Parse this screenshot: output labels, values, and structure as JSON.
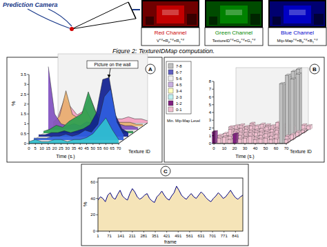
{
  "diagram": {
    "camera_label": "Prediction Camera",
    "channels": [
      {
        "name": "Red Channel",
        "color": "#cc0000",
        "formula": [
          {
            "text": "V"
          },
          {
            "sup": "x,y"
          },
          {
            "text": "=R"
          },
          {
            "sub": "P"
          },
          {
            "sup": "x,y"
          },
          {
            "text": "×R"
          },
          {
            "sub": "T"
          },
          {
            "sup": "x,y"
          }
        ]
      },
      {
        "name": "Green Channel",
        "color": "#008800",
        "formula": [
          {
            "text": "TextureID"
          },
          {
            "sup": "x,y"
          },
          {
            "text": "=G"
          },
          {
            "sub": "P"
          },
          {
            "sup": "x,y"
          },
          {
            "text": "×G"
          },
          {
            "sub": "T"
          },
          {
            "sup": "x,y"
          }
        ]
      },
      {
        "name": "Blue Channel",
        "color": "#0000cc",
        "formula": [
          {
            "text": "Mip-Map"
          },
          {
            "sup": "x,y"
          },
          {
            "text": "=B"
          },
          {
            "sub": "P"
          },
          {
            "sup": "x,y"
          },
          {
            "text": "×B"
          },
          {
            "sub": "T"
          },
          {
            "sup": "x,y"
          }
        ]
      }
    ]
  },
  "caption": "Figure 2: TextureIDMap computation.",
  "chart_data": [
    {
      "type": "area3d",
      "label": "A",
      "annotation": "Picture on the wall",
      "x_label": "Time (s.)",
      "z_label": "Texture ID",
      "y_label": "%",
      "x": [
        0,
        5,
        10,
        15,
        20,
        25,
        30,
        35,
        40,
        45,
        50,
        55,
        60,
        65,
        70
      ],
      "xlim": [
        0,
        70
      ],
      "xticks": [
        0,
        5,
        10,
        15,
        20,
        25,
        30,
        35,
        40,
        45,
        50,
        55,
        60,
        65,
        70
      ],
      "ylim": [
        0,
        3.5
      ],
      "yticks": [
        0,
        0.5,
        1,
        1.5,
        2,
        2.5,
        3,
        3.5
      ],
      "series": [
        {
          "color": "#f4a0c0",
          "values": [
            0.3,
            1.2,
            0.8,
            0.4,
            0.6,
            1.3,
            0.5,
            0.3,
            0.2,
            0.2,
            0.2,
            0.3,
            0.2,
            0.2,
            0.1
          ]
        },
        {
          "color": "#e8b070",
          "values": [
            0.2,
            0.5,
            1.8,
            0.6,
            0.4,
            0.9,
            0.3,
            0.2,
            0.5,
            0.3,
            0.2,
            0.2,
            0.2,
            0.1,
            0.1
          ]
        },
        {
          "color": "#8050c0",
          "values": [
            3.2,
            0.8,
            0.3,
            0.2,
            0.3,
            0.2,
            0.4,
            0.3,
            0.2,
            1.6,
            0.6,
            0.3,
            0.2,
            0.2,
            0.1
          ]
        },
        {
          "color": "#2aa050",
          "values": [
            0.1,
            0.2,
            0.4,
            0.3,
            0.6,
            0.8,
            1.0,
            2.1,
            1.2,
            0.4,
            0.3,
            0.2,
            0.2,
            0.1,
            0.1
          ]
        },
        {
          "color": "#102090",
          "values": [
            0.1,
            0.1,
            0.2,
            0.2,
            0.3,
            0.2,
            0.3,
            0.4,
            0.6,
            1.2,
            2.9,
            3.0,
            1.1,
            0.4,
            0.2
          ]
        },
        {
          "color": "#3060e0",
          "values": [
            0.1,
            0.1,
            0.1,
            0.2,
            0.2,
            0.3,
            0.2,
            0.3,
            0.5,
            0.4,
            0.8,
            2.2,
            2.6,
            0.9,
            0.3
          ]
        },
        {
          "color": "#30c0d0",
          "values": [
            0.1,
            0.2,
            0.1,
            0.1,
            0.2,
            0.2,
            0.1,
            0.2,
            0.2,
            0.3,
            0.5,
            0.9,
            1.3,
            0.7,
            0.2
          ]
        }
      ]
    },
    {
      "type": "bar3d",
      "label": "B",
      "x_label": "Time (s.)",
      "z_label": "Texture ID",
      "legend_title": "Min. Mip-Map Level",
      "bins": [
        {
          "label": "7-8",
          "min": 7,
          "max": 8,
          "color": "#c0c0c0"
        },
        {
          "label": "6-7",
          "min": 6,
          "max": 7,
          "color": "#6060c0"
        },
        {
          "label": "5-6",
          "min": 5,
          "max": 6,
          "color": "#f0f0f0"
        },
        {
          "label": "4-5",
          "min": 4,
          "max": 5,
          "color": "#c8b0e0"
        },
        {
          "label": "3-4",
          "min": 3,
          "max": 4,
          "color": "#ffffc0"
        },
        {
          "label": "2-3",
          "min": 2,
          "max": 3,
          "color": "#c0f0f0"
        },
        {
          "label": "1-2",
          "min": 1,
          "max": 2,
          "color": "#802080"
        },
        {
          "label": "0-1",
          "min": 0,
          "max": 1,
          "color": "#f0c0d0"
        }
      ],
      "x": [
        0,
        5,
        10,
        15,
        20,
        25,
        30,
        35,
        40,
        45,
        50,
        55,
        60,
        65,
        70
      ],
      "xlim": [
        0,
        70
      ],
      "xticks": [
        0,
        10,
        20,
        30,
        40,
        50,
        60,
        70
      ],
      "ylim": [
        0,
        8
      ],
      "yticks": [
        0,
        1,
        2,
        3,
        4,
        5,
        6,
        7,
        8
      ],
      "series": [
        {
          "values": [
            0.5,
            0.6,
            0.4,
            0.8,
            0.5,
            0.7,
            0.6,
            0.5,
            0.9,
            0.6,
            0.5,
            7.5,
            7.8,
            0.6,
            0.5
          ]
        },
        {
          "values": [
            0.8,
            0.5,
            0.6,
            0.5,
            0.9,
            0.4,
            0.6,
            0.8,
            0.5,
            0.7,
            0.6,
            7.2,
            0.8,
            7.6,
            0.4
          ]
        },
        {
          "values": [
            0.4,
            0.9,
            0.7,
            0.6,
            0.5,
            0.8,
            0.5,
            0.6,
            0.7,
            0.5,
            0.8,
            0.6,
            7.9,
            7.4,
            0.6
          ]
        },
        {
          "values": [
            0.6,
            0.4,
            0.5,
            0.7,
            0.6,
            0.5,
            0.9,
            0.4,
            0.6,
            0.8,
            0.5,
            0.7,
            7.0,
            0.5,
            0.7
          ]
        },
        {
          "values": [
            1.5,
            0.7,
            0.8,
            0.5,
            1.2,
            0.6,
            0.7,
            0.9,
            0.5,
            0.6,
            0.7,
            0.5,
            0.6,
            7.7,
            0.5
          ]
        }
      ]
    },
    {
      "type": "area",
      "label": "C",
      "x_label": "frame",
      "y_label": "%",
      "color": "#000080",
      "x": [
        1,
        16,
        31,
        46,
        61,
        76,
        91,
        106,
        121,
        136,
        151,
        166,
        181,
        196,
        211,
        226,
        241,
        256,
        271,
        286,
        301,
        316,
        331,
        346,
        361,
        376,
        391,
        406,
        421,
        436,
        451,
        466,
        481,
        496,
        511,
        526,
        541,
        556,
        571,
        586,
        601,
        616,
        631,
        646,
        661,
        676,
        691,
        706,
        721,
        736,
        751,
        766,
        781,
        796,
        811,
        826,
        841,
        856,
        871,
        886
      ],
      "values": [
        38,
        42,
        40,
        36,
        44,
        47,
        41,
        39,
        45,
        50,
        43,
        40,
        38,
        46,
        52,
        48,
        42,
        39,
        41,
        44,
        46,
        40,
        37,
        35,
        42,
        45,
        49,
        44,
        40,
        38,
        43,
        47,
        55,
        50,
        44,
        41,
        39,
        43,
        46,
        42,
        40,
        44,
        48,
        45,
        41,
        38,
        36,
        40,
        43,
        47,
        44,
        40,
        42,
        46,
        50,
        45,
        41,
        39,
        42,
        44
      ],
      "xlim": [
        1,
        886
      ],
      "xticks": [
        1,
        71,
        141,
        211,
        281,
        351,
        421,
        491,
        561,
        631,
        701,
        771,
        841
      ],
      "ylim": [
        0,
        65
      ],
      "yticks": [
        0,
        20,
        40,
        60
      ]
    }
  ]
}
